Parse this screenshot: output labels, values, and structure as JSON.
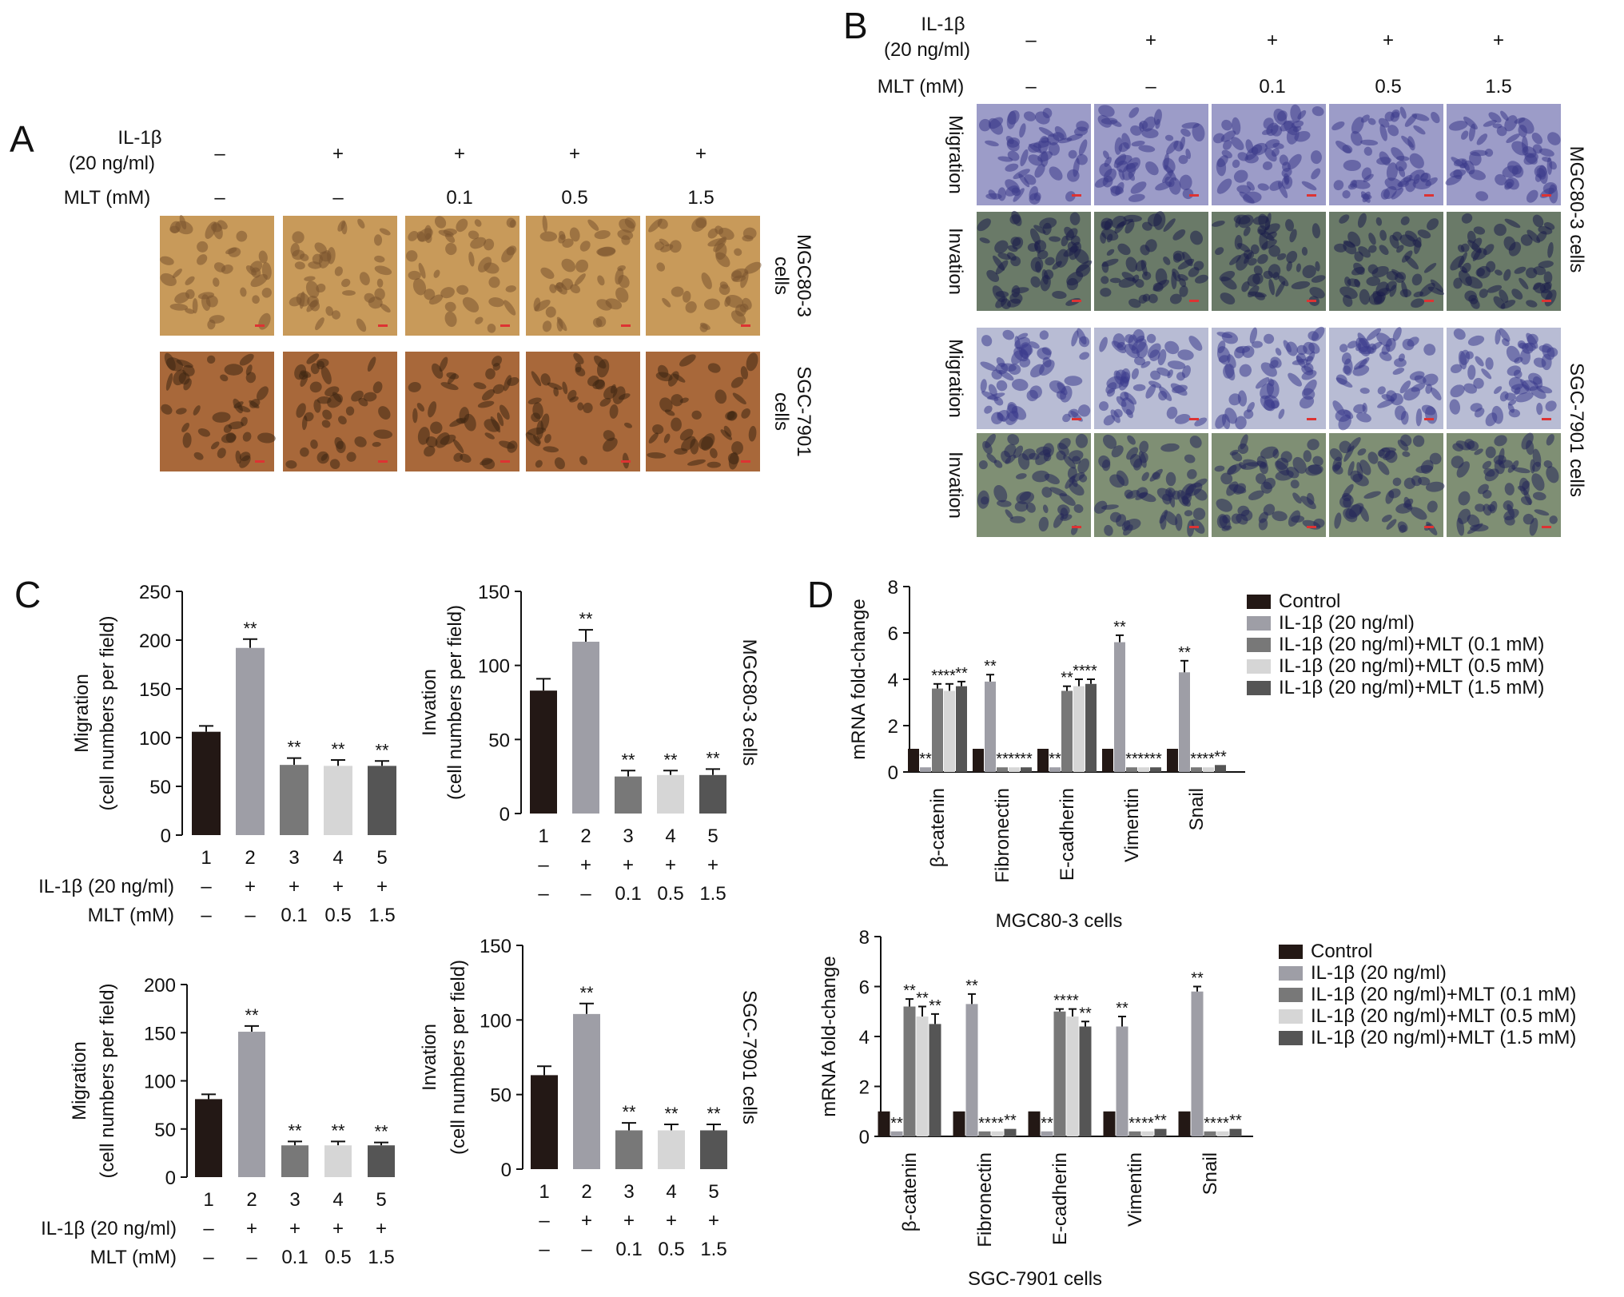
{
  "panels": {
    "A": {
      "letter": "A",
      "il1b_label": [
        "IL-1β",
        "(20 ng/ml)"
      ],
      "il1b_values": [
        "–",
        "+",
        "+",
        "+",
        "+"
      ],
      "mlt_label": "MLT (mM)",
      "mlt_values": [
        "–",
        "–",
        "0.1",
        "0.5",
        "1.5"
      ],
      "row_labels": [
        [
          "MGC80-3",
          "cells"
        ],
        [
          "SGC-7901",
          "cells"
        ]
      ],
      "image_palette": [
        "#c89a5a",
        "#a8683a"
      ]
    },
    "B": {
      "letter": "B",
      "il1b_label": [
        "IL-1β",
        "(20 ng/ml)"
      ],
      "il1b_values": [
        "–",
        "+",
        "+",
        "+",
        "+"
      ],
      "mlt_label": "MLT (mM)",
      "mlt_values": [
        "–",
        "–",
        "0.1",
        "0.5",
        "1.5"
      ],
      "row_labels": [
        "Migration",
        "Invation",
        "Migration",
        "Invation"
      ],
      "cell_group_labels": [
        "MGC80-3 cells",
        "SGC-7901 cells"
      ],
      "image_palette": [
        "#9c9cc8",
        "#6a7a68",
        "#b8bcd4",
        "#7f8f74"
      ]
    },
    "C": {
      "letter": "C"
    },
    "D": {
      "letter": "D"
    }
  },
  "chart_data": [
    {
      "id": "C-migration-MGC80-3",
      "type": "bar",
      "categories": [
        "1",
        "2",
        "3",
        "4",
        "5"
      ],
      "values": [
        106,
        192,
        72,
        71,
        71
      ],
      "errors": [
        6,
        9,
        7,
        6,
        5
      ],
      "significance": [
        "",
        "**",
        "**",
        "**",
        "**"
      ],
      "ylabel": [
        "Migration",
        "(cell numbers per field)"
      ],
      "ylim": [
        0,
        250
      ],
      "yticks": [
        "0",
        "50",
        "100",
        "150",
        "200",
        "250"
      ],
      "bar_colors": [
        "#231815",
        "#9e9ea6",
        "#787878",
        "#d6d6d6",
        "#555555"
      ],
      "treatment_rows": [
        {
          "label": "IL-1β (20 ng/ml)",
          "values": [
            "–",
            "+",
            "+",
            "+",
            "+"
          ]
        },
        {
          "label": "MLT (mM)",
          "values": [
            "–",
            "–",
            "0.1",
            "0.5",
            "1.5"
          ]
        }
      ]
    },
    {
      "id": "C-invation-MGC80-3",
      "type": "bar",
      "categories": [
        "1",
        "2",
        "3",
        "4",
        "5"
      ],
      "values": [
        83,
        116,
        25,
        26,
        26
      ],
      "errors": [
        8,
        8,
        4,
        3,
        4
      ],
      "significance": [
        "",
        "**",
        "**",
        "**",
        "**"
      ],
      "ylabel": [
        "Invation",
        "(cell numbers per field)"
      ],
      "ylim": [
        0,
        150
      ],
      "yticks": [
        "0",
        "50",
        "100",
        "150"
      ],
      "bar_colors": [
        "#231815",
        "#9e9ea6",
        "#787878",
        "#d6d6d6",
        "#555555"
      ],
      "side_label": "MGC80-3 cells",
      "treatment_rows": [
        {
          "label": "",
          "values": [
            "–",
            "+",
            "+",
            "+",
            "+"
          ]
        },
        {
          "label": "",
          "values": [
            "–",
            "–",
            "0.1",
            "0.5",
            "1.5"
          ]
        }
      ]
    },
    {
      "id": "C-migration-SGC-7901",
      "type": "bar",
      "categories": [
        "1",
        "2",
        "3",
        "4",
        "5"
      ],
      "values": [
        81,
        151,
        33,
        33,
        33
      ],
      "errors": [
        5,
        6,
        4,
        4,
        3
      ],
      "significance": [
        "",
        "**",
        "**",
        "**",
        "**"
      ],
      "ylabel": [
        "Migration",
        "(cell numbers per field)"
      ],
      "ylim": [
        0,
        200
      ],
      "yticks": [
        "0",
        "50",
        "100",
        "150",
        "200"
      ],
      "bar_colors": [
        "#231815",
        "#9e9ea6",
        "#787878",
        "#d6d6d6",
        "#555555"
      ],
      "treatment_rows": [
        {
          "label": "IL-1β (20 ng/ml)",
          "values": [
            "–",
            "+",
            "+",
            "+",
            "+"
          ]
        },
        {
          "label": "MLT (mM)",
          "values": [
            "–",
            "–",
            "0.1",
            "0.5",
            "1.5"
          ]
        }
      ]
    },
    {
      "id": "C-invation-SGC-7901",
      "type": "bar",
      "categories": [
        "1",
        "2",
        "3",
        "4",
        "5"
      ],
      "values": [
        63,
        104,
        26,
        26,
        26
      ],
      "errors": [
        6,
        7,
        5,
        4,
        4
      ],
      "significance": [
        "",
        "**",
        "**",
        "**",
        "**"
      ],
      "ylabel": [
        "Invation",
        "(cell numbers per field)"
      ],
      "ylim": [
        0,
        150
      ],
      "yticks": [
        "0",
        "50",
        "100",
        "150"
      ],
      "bar_colors": [
        "#231815",
        "#9e9ea6",
        "#787878",
        "#d6d6d6",
        "#555555"
      ],
      "side_label": "SGC-7901 cells",
      "treatment_rows": [
        {
          "label": "",
          "values": [
            "–",
            "+",
            "+",
            "+",
            "+"
          ]
        },
        {
          "label": "",
          "values": [
            "–",
            "–",
            "0.1",
            "0.5",
            "1.5"
          ]
        }
      ]
    },
    {
      "id": "D-MGC80-3",
      "type": "bar",
      "categories": [
        "β-catenin",
        "Fibronectin",
        "E-cadherin",
        "Vimentin",
        "Snail"
      ],
      "series": [
        {
          "name": "Control",
          "values": [
            1.0,
            1.0,
            1.0,
            1.0,
            1.0
          ],
          "errors": [
            0,
            0,
            0,
            0,
            0
          ],
          "significance": [
            "",
            "",
            "",
            "",
            ""
          ]
        },
        {
          "name": "IL-1β (20 ng/ml)",
          "values": [
            0.2,
            3.9,
            0.2,
            5.6,
            4.3
          ],
          "errors": [
            0,
            0.3,
            0,
            0.3,
            0.5
          ],
          "significance": [
            "**",
            "**",
            "**",
            "**",
            "**"
          ]
        },
        {
          "name": "IL-1β (20 ng/ml)+MLT (0.1 mM)",
          "values": [
            3.6,
            0.2,
            3.5,
            0.2,
            0.2
          ],
          "errors": [
            0.2,
            0,
            0.2,
            0,
            0
          ],
          "significance": [
            "**",
            "**",
            "**",
            "**",
            "**"
          ]
        },
        {
          "name": "IL-1β (20 ng/ml)+MLT (0.5 mM)",
          "values": [
            3.5,
            0.2,
            3.7,
            0.2,
            0.2
          ],
          "errors": [
            0.3,
            0,
            0.3,
            0,
            0
          ],
          "significance": [
            "**",
            "**",
            "**",
            "**",
            "**"
          ]
        },
        {
          "name": "IL-1β (20 ng/ml)+MLT (1.5 mM)",
          "values": [
            3.7,
            0.2,
            3.8,
            0.2,
            0.3
          ],
          "errors": [
            0.2,
            0,
            0.2,
            0,
            0
          ],
          "significance": [
            "**",
            "**",
            "**",
            "**",
            "**"
          ]
        }
      ],
      "ylabel": "mRNA fold-change",
      "ylim": [
        0,
        8
      ],
      "yticks": [
        "0",
        "2",
        "4",
        "6",
        "8"
      ],
      "xlabel": "MGC80-3 cells",
      "legend": "right",
      "series_colors": [
        "#231815",
        "#9e9ea6",
        "#787878",
        "#d6d6d6",
        "#555555"
      ]
    },
    {
      "id": "D-SGC-7901",
      "type": "bar",
      "categories": [
        "β-catenin",
        "Fibronectin",
        "E-cadherin",
        "Vimentin",
        "Snail"
      ],
      "series": [
        {
          "name": "Control",
          "values": [
            1.0,
            1.0,
            1.0,
            1.0,
            1.0
          ],
          "errors": [
            0,
            0,
            0,
            0,
            0
          ],
          "significance": [
            "",
            "",
            "",
            "",
            ""
          ]
        },
        {
          "name": "IL-1β (20 ng/ml)",
          "values": [
            0.2,
            5.3,
            0.2,
            4.4,
            5.8
          ],
          "errors": [
            0,
            0.4,
            0,
            0.4,
            0.2
          ],
          "significance": [
            "**",
            "**",
            "**",
            "**",
            "**"
          ]
        },
        {
          "name": "IL-1β (20 ng/ml)+MLT (0.1 mM)",
          "values": [
            5.2,
            0.2,
            5.0,
            0.2,
            0.2
          ],
          "errors": [
            0.3,
            0,
            0.1,
            0,
            0
          ],
          "significance": [
            "**",
            "**",
            "**",
            "**",
            "**"
          ]
        },
        {
          "name": "IL-1β (20 ng/ml)+MLT (0.5 mM)",
          "values": [
            4.8,
            0.2,
            4.8,
            0.2,
            0.2
          ],
          "errors": [
            0.4,
            0,
            0.3,
            0,
            0
          ],
          "significance": [
            "**",
            "**",
            "**",
            "**",
            "**"
          ]
        },
        {
          "name": "IL-1β (20 ng/ml)+MLT (1.5 mM)",
          "values": [
            4.5,
            0.3,
            4.4,
            0.3,
            0.3
          ],
          "errors": [
            0.4,
            0,
            0.2,
            0,
            0
          ],
          "significance": [
            "**",
            "**",
            "**",
            "**",
            "**"
          ]
        }
      ],
      "ylabel": "mRNA fold-change",
      "ylim": [
        0,
        8
      ],
      "yticks": [
        "0",
        "2",
        "4",
        "6",
        "8"
      ],
      "xlabel": "SGC-7901 cells",
      "legend": "right",
      "series_colors": [
        "#231815",
        "#9e9ea6",
        "#787878",
        "#d6d6d6",
        "#555555"
      ]
    }
  ]
}
